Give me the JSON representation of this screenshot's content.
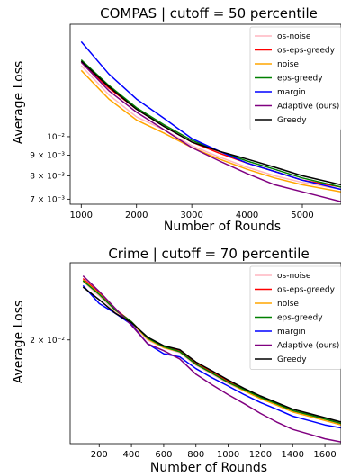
{
  "chart_data": [
    {
      "type": "line",
      "title": "COMPAS | cutoff = 50 percentile",
      "xlabel": "Number of Rounds",
      "ylabel": "Average Loss",
      "yscale": "log",
      "xlim": [
        800,
        5700
      ],
      "ylim": [
        0.0068,
        0.019
      ],
      "x": [
        1000,
        1500,
        2000,
        2500,
        3000,
        3500,
        4000,
        4500,
        5000,
        5700
      ],
      "xticks": [
        1000,
        2000,
        3000,
        4000,
        5000
      ],
      "xtick_labels": [
        "1000",
        "2000",
        "3000",
        "4000",
        "5000"
      ],
      "yticks": [
        0.007,
        0.008,
        0.009,
        0.01
      ],
      "ytick_labels": [
        "7 × 10⁻³",
        "8 × 10⁻³",
        "9 × 10⁻³",
        "10⁻²"
      ],
      "grid": false,
      "legend_position": "top-right",
      "series": [
        {
          "name": "os-noise",
          "color": "#ffb6c1",
          "values": [
            0.015,
            0.0127,
            0.0112,
            0.0104,
            0.0095,
            0.0089,
            0.0084,
            0.008,
            0.0077,
            0.0074
          ]
        },
        {
          "name": "os-eps-greedy",
          "color": "#ff0000",
          "values": [
            0.0153,
            0.0132,
            0.0117,
            0.0106,
            0.0097,
            0.0091,
            0.0086,
            0.0082,
            0.0078,
            0.0075
          ]
        },
        {
          "name": "noise",
          "color": "#ffa500",
          "values": [
            0.0146,
            0.0124,
            0.011,
            0.0102,
            0.0094,
            0.0088,
            0.0083,
            0.0079,
            0.0076,
            0.0073
          ]
        },
        {
          "name": "eps-greedy",
          "color": "#008000",
          "values": [
            0.0155,
            0.0134,
            0.0118,
            0.0107,
            0.0098,
            0.0092,
            0.0087,
            0.0083,
            0.0079,
            0.0075
          ]
        },
        {
          "name": "margin",
          "color": "#0000ff",
          "values": [
            0.0172,
            0.0143,
            0.0124,
            0.0111,
            0.0099,
            0.0092,
            0.0086,
            0.0082,
            0.0078,
            0.0074
          ]
        },
        {
          "name": "Adaptive (ours)",
          "color": "#800080",
          "values": [
            0.0153,
            0.013,
            0.0115,
            0.0104,
            0.0094,
            0.0087,
            0.0081,
            0.0076,
            0.0073,
            0.0069
          ]
        },
        {
          "name": "Greedy",
          "color": "#000000",
          "values": [
            0.0154,
            0.0133,
            0.0117,
            0.0106,
            0.0097,
            0.0092,
            0.0088,
            0.0084,
            0.008,
            0.0076
          ]
        }
      ]
    },
    {
      "type": "line",
      "title": "Crime | cutoff = 70 percentile",
      "xlabel": "Number of Rounds",
      "ylabel": "Average Loss",
      "yscale": "log",
      "xlim": [
        20,
        1700
      ],
      "ylim": [
        0.0116,
        0.03
      ],
      "x": [
        100,
        200,
        300,
        400,
        500,
        600,
        700,
        800,
        900,
        1000,
        1100,
        1200,
        1300,
        1400,
        1500,
        1600,
        1700
      ],
      "xticks": [
        200,
        400,
        600,
        800,
        1000,
        1200,
        1400,
        1600
      ],
      "xtick_labels": [
        "200",
        "400",
        "600",
        "800",
        "1000",
        "1200",
        "1400",
        "1600"
      ],
      "yticks": [
        0.02
      ],
      "ytick_labels": [
        "2 × 10⁻²"
      ],
      "grid": false,
      "legend_position": "top-right",
      "series": [
        {
          "name": "os-noise",
          "color": "#ffb6c1",
          "values": [
            0.0272,
            0.0252,
            0.0232,
            0.0218,
            0.02,
            0.0192,
            0.0187,
            0.0175,
            0.0167,
            0.0159,
            0.0153,
            0.0147,
            0.0142,
            0.0137,
            0.0134,
            0.0131,
            0.0128
          ]
        },
        {
          "name": "os-eps-greedy",
          "color": "#ff0000",
          "values": [
            0.0276,
            0.0256,
            0.0235,
            0.022,
            0.0202,
            0.0193,
            0.0189,
            0.0177,
            0.0169,
            0.0161,
            0.0154,
            0.0148,
            0.0143,
            0.0138,
            0.0135,
            0.0132,
            0.0129
          ]
        },
        {
          "name": "noise",
          "color": "#ffa500",
          "values": [
            0.0274,
            0.0255,
            0.0234,
            0.0219,
            0.0201,
            0.0192,
            0.0188,
            0.0176,
            0.0168,
            0.016,
            0.0153,
            0.0147,
            0.0142,
            0.0137,
            0.0134,
            0.0131,
            0.0128
          ]
        },
        {
          "name": "eps-greedy",
          "color": "#008000",
          "values": [
            0.0273,
            0.0254,
            0.0234,
            0.022,
            0.0202,
            0.0193,
            0.0188,
            0.0176,
            0.0168,
            0.016,
            0.0154,
            0.0148,
            0.0143,
            0.0138,
            0.0135,
            0.0132,
            0.0129
          ]
        },
        {
          "name": "margin",
          "color": "#0000ff",
          "values": [
            0.0266,
            0.0242,
            0.023,
            0.0217,
            0.0196,
            0.0186,
            0.0183,
            0.0172,
            0.0164,
            0.0157,
            0.015,
            0.0144,
            0.0139,
            0.0134,
            0.0131,
            0.0128,
            0.0126
          ]
        },
        {
          "name": "Adaptive (ours)",
          "color": "#800080",
          "values": [
            0.028,
            0.0258,
            0.0236,
            0.0216,
            0.0196,
            0.0189,
            0.0181,
            0.0167,
            0.0158,
            0.015,
            0.0143,
            0.0136,
            0.013,
            0.0125,
            0.0122,
            0.0119,
            0.0117
          ]
        },
        {
          "name": "Greedy",
          "color": "#000000",
          "values": [
            0.0264,
            0.0247,
            0.023,
            0.0219,
            0.0203,
            0.0194,
            0.019,
            0.0178,
            0.017,
            0.0162,
            0.0155,
            0.0149,
            0.0144,
            0.0139,
            0.0136,
            0.0133,
            0.013
          ]
        }
      ]
    }
  ]
}
